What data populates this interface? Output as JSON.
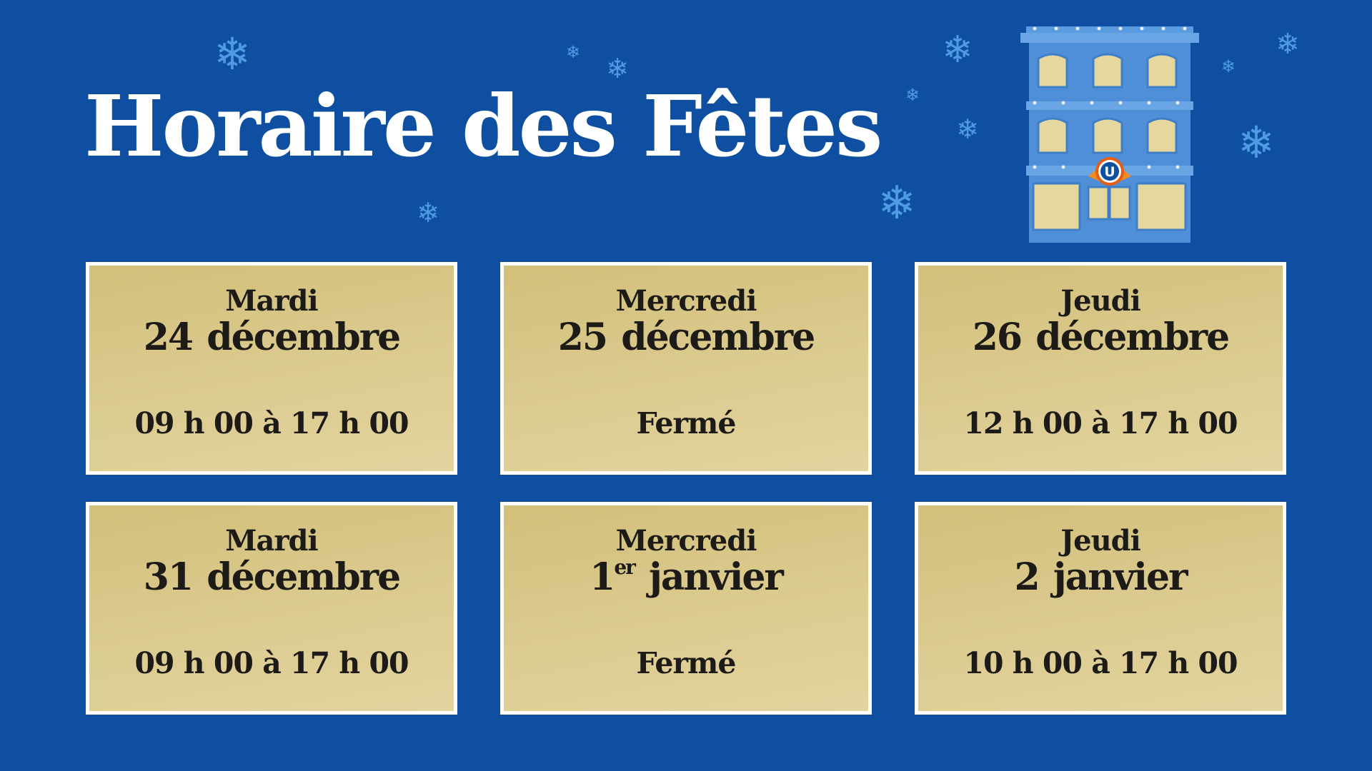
{
  "title": "Horaire des Fêtes",
  "colors": {
    "background": "#0e4fa1",
    "card": "#d9c78a",
    "card_border": "#ffffff",
    "text": "#1d1b17",
    "snowflake": "#4f9be3"
  },
  "decorations": {
    "snowflake_icon": "❄",
    "building": "storefront-building-illustration",
    "logo_letter": "U"
  },
  "schedule": [
    {
      "day": "Mardi",
      "date_num": "24",
      "date_sup": "",
      "month": "décembre",
      "hours": "09 h 00 à 17 h 00"
    },
    {
      "day": "Mercredi",
      "date_num": "25",
      "date_sup": "",
      "month": "décembre",
      "hours": "Fermé"
    },
    {
      "day": "Jeudi",
      "date_num": "26",
      "date_sup": "",
      "month": "décembre",
      "hours": "12 h 00 à 17 h 00"
    },
    {
      "day": "Mardi",
      "date_num": "31",
      "date_sup": "",
      "month": "décembre",
      "hours": "09 h 00 à 17 h 00"
    },
    {
      "day": "Mercredi",
      "date_num": "1",
      "date_sup": "er",
      "month": "janvier",
      "hours": "Fermé"
    },
    {
      "day": "Jeudi",
      "date_num": "2",
      "date_sup": "",
      "month": "janvier",
      "hours": "10 h 00 à 17 h 00"
    }
  ]
}
